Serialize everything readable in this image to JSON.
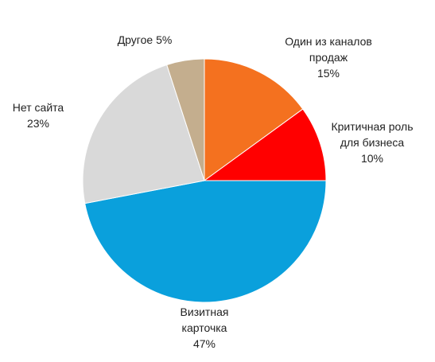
{
  "chart_data": {
    "type": "pie",
    "categories": [
      "Один из каналов продаж",
      "Критичная роль для бизнеса",
      "Визитная карточка",
      "Нет сайта",
      "Другое"
    ],
    "values": [
      15,
      10,
      47,
      23,
      5
    ],
    "value_labels": [
      "15%",
      "10%",
      "47%",
      "23%",
      "5%"
    ],
    "colors": [
      "#f4711f",
      "#ff0000",
      "#0aa0dc",
      "#d9d9d9",
      "#c4ae8e"
    ]
  }
}
